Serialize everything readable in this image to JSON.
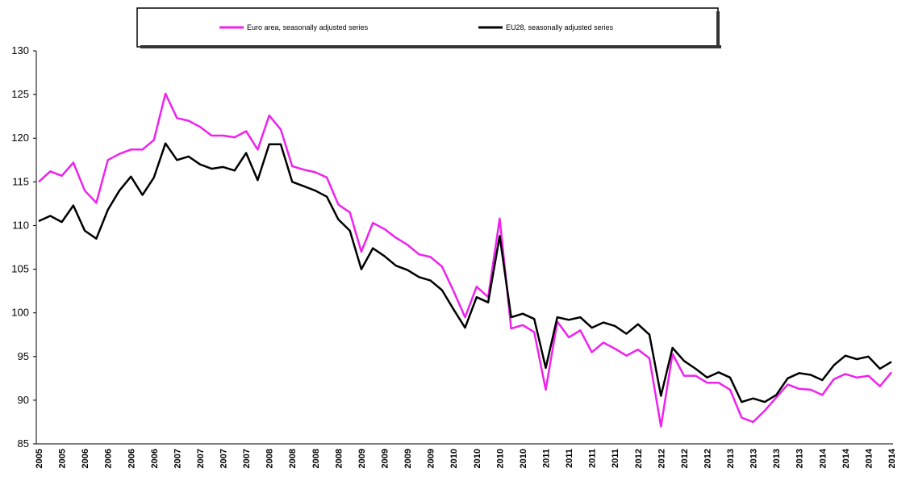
{
  "chart_data": {
    "type": "line",
    "categories": [
      "2005",
      null,
      "2005",
      null,
      "2006",
      null,
      "2006",
      null,
      "2006",
      null,
      "2006",
      null,
      "2007",
      null,
      "2007",
      null,
      "2007",
      null,
      "2007",
      null,
      "2008",
      null,
      "2008",
      null,
      "2008",
      null,
      "2008",
      null,
      "2009",
      null,
      "2009",
      null,
      "2009",
      null,
      "2009",
      null,
      "2010",
      null,
      "2010",
      null,
      "2010",
      null,
      "2010",
      null,
      "2011",
      null,
      "2011",
      null,
      "2011",
      null,
      "2011",
      null,
      "2012",
      null,
      "2012",
      null,
      "2012",
      null,
      "2012",
      null,
      "2013",
      null,
      "2013",
      null,
      "2013",
      null,
      "2013",
      null,
      "2014",
      null,
      "2014",
      null,
      "2014",
      null,
      "2014"
    ],
    "series": [
      {
        "name": "Euro area, seasonally adjusted series",
        "color": "#ee22ee",
        "values": [
          115,
          116.2,
          115.7,
          117.2,
          114,
          112.6,
          117.5,
          118.2,
          118.7,
          118.7,
          119.8,
          125.1,
          122.3,
          122,
          121.3,
          120.3,
          120.3,
          120.1,
          120.8,
          118.7,
          122.6,
          121,
          116.8,
          116.4,
          116.1,
          115.5,
          112.4,
          111.5,
          107,
          110.3,
          109.6,
          108.6,
          107.8,
          106.7,
          106.4,
          105.3,
          102.5,
          99.5,
          103,
          101.8,
          110.8,
          98.2,
          98.6,
          97.8,
          91.2,
          99,
          97.2,
          98,
          95.5,
          96.6,
          95.9,
          95.1,
          95.8,
          94.8,
          87,
          95.3,
          92.8,
          92.8,
          92,
          92,
          91.2,
          88,
          87.5,
          88.8,
          90.3,
          91.8,
          91.3,
          91.2,
          90.6,
          92.4,
          93,
          92.6,
          92.8,
          91.6,
          93.2
        ]
      },
      {
        "name": "EU28, seasonally adjusted series",
        "color": "#000000",
        "values": [
          110.5,
          111.1,
          110.4,
          112.3,
          109.4,
          108.5,
          111.8,
          114,
          115.6,
          113.5,
          115.5,
          119.4,
          117.5,
          117.9,
          117,
          116.5,
          116.7,
          116.3,
          118.3,
          115.2,
          119.3,
          119.3,
          115,
          114.5,
          114,
          113.3,
          110.7,
          109.4,
          105,
          107.4,
          106.5,
          105.4,
          104.9,
          104.1,
          103.7,
          102.6,
          100.4,
          98.3,
          101.8,
          101.2,
          108.8,
          99.5,
          99.9,
          99.3,
          93.7,
          99.5,
          99.2,
          99.5,
          98.3,
          98.9,
          98.5,
          97.6,
          98.7,
          97.5,
          90.5,
          96,
          94.5,
          93.6,
          92.6,
          93.2,
          92.6,
          89.8,
          90.2,
          89.8,
          90.6,
          92.5,
          93.1,
          92.9,
          92.3,
          94,
          95.1,
          94.7,
          95,
          93.6,
          94.4
        ]
      }
    ],
    "ylim": [
      85,
      130
    ],
    "yticks": [
      85,
      90,
      95,
      100,
      105,
      110,
      115,
      120,
      125,
      130
    ]
  }
}
